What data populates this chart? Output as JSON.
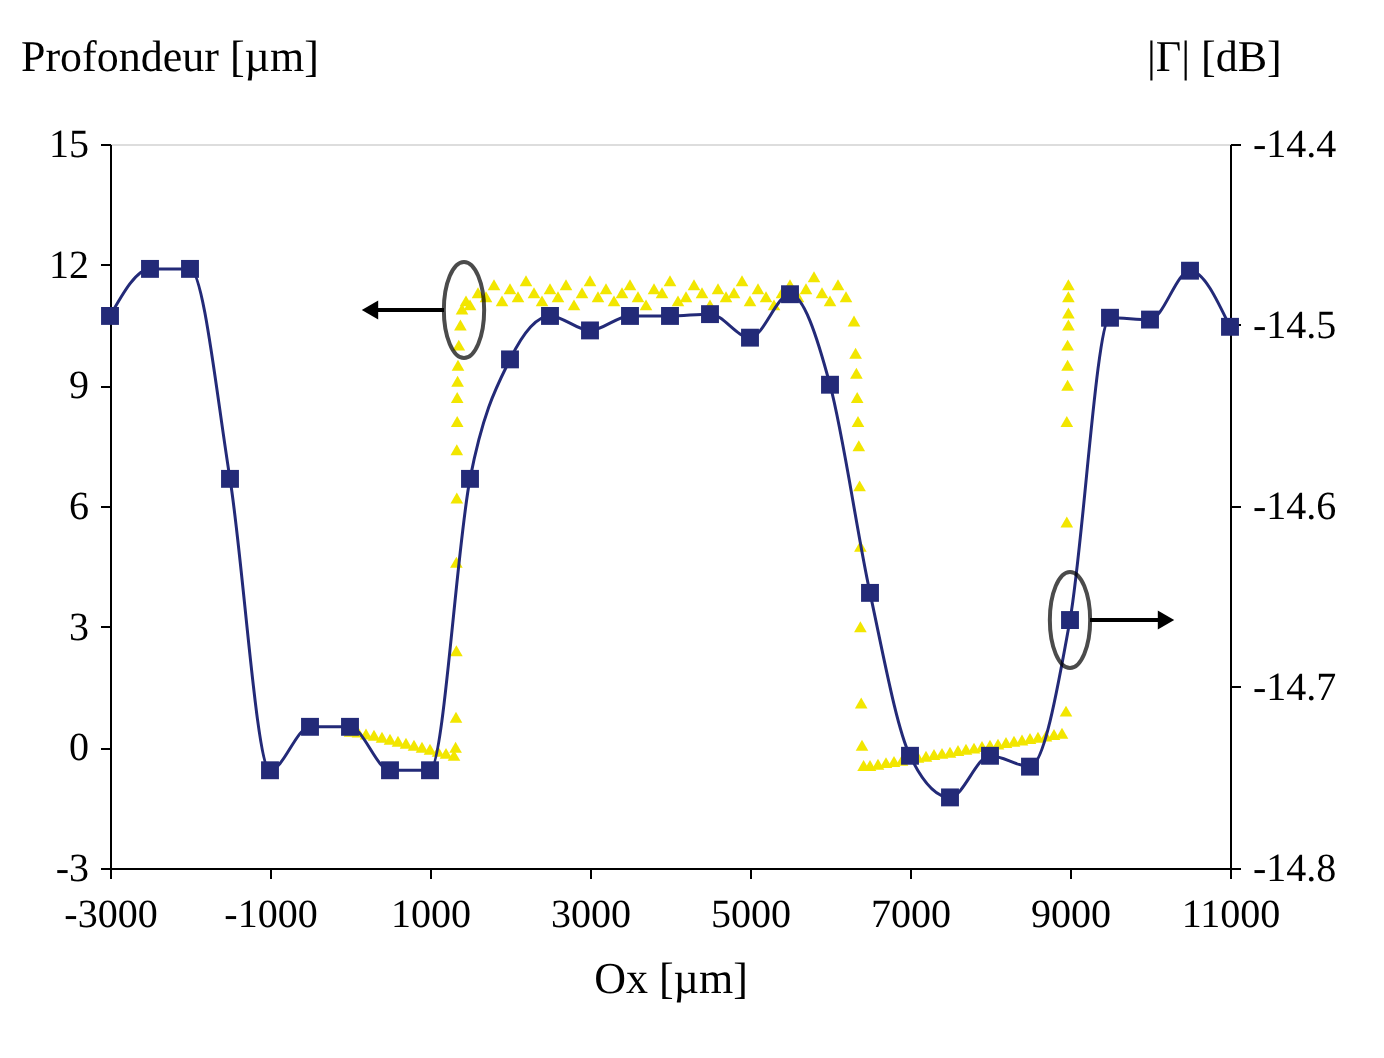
{
  "chart_data": {
    "type": "line",
    "xlabel": "Ox [µm]",
    "ylabel": "Profondeur [µm]",
    "y2label": "|Γ| [dB]",
    "xlim": [
      -3000,
      11000
    ],
    "xticks": [
      -3000,
      -1000,
      1000,
      3000,
      5000,
      7000,
      9000,
      11000
    ],
    "ylim": [
      -3,
      15
    ],
    "yticks": [
      -3,
      0,
      3,
      6,
      9,
      12,
      15
    ],
    "y2lim": [
      -14.8,
      -14.4
    ],
    "y2ticks": [
      -14.8,
      -14.7,
      -14.6,
      -14.5,
      -14.4
    ],
    "grid": false,
    "series": [
      {
        "type": "scatter",
        "marker": "triangle",
        "color": "#f2e600",
        "x": [
          0,
          100,
          200,
          300,
          400,
          500,
          600,
          700,
          800,
          900,
          1000,
          1100,
          1200,
          1300,
          1320,
          1325,
          1330,
          1330,
          1335,
          1335,
          1340,
          1340,
          1345,
          1350,
          1360,
          1380,
          1400,
          1450,
          1500,
          1600,
          1700,
          1800,
          1900,
          2000,
          2100,
          2200,
          2300,
          2400,
          2500,
          2600,
          2700,
          2800,
          2900,
          3000,
          3100,
          3200,
          3300,
          3400,
          3500,
          3600,
          3700,
          3800,
          3900,
          4000,
          4100,
          4200,
          4300,
          4400,
          4500,
          4600,
          4700,
          4800,
          4900,
          5000,
          5100,
          5200,
          5300,
          5400,
          5500,
          5600,
          5700,
          5800,
          5900,
          6000,
          6100,
          6200,
          6300,
          6320,
          6330,
          6340,
          6350,
          6360,
          6370,
          6380,
          6380,
          6390,
          6400,
          6420,
          6500,
          6600,
          6700,
          6800,
          6900,
          7000,
          7100,
          7200,
          7300,
          7400,
          7500,
          7600,
          7700,
          7800,
          7900,
          8000,
          8100,
          8200,
          8300,
          8400,
          8500,
          8600,
          8700,
          8800,
          8900,
          8950,
          8960,
          8960,
          8970,
          8970,
          8970,
          8980,
          8980,
          8980,
          8980
        ],
        "values": [
          0.4,
          0.38,
          0.33,
          0.3,
          0.25,
          0.2,
          0.15,
          0.1,
          0.05,
          0.0,
          -0.05,
          -0.1,
          -0.15,
          -0.2,
          0.0,
          0.75,
          2.4,
          4.6,
          6.2,
          7.4,
          8.1,
          8.7,
          9.1,
          9.5,
          10.0,
          10.5,
          10.9,
          11.1,
          11.0,
          11.3,
          11.2,
          11.5,
          11.1,
          11.4,
          11.2,
          11.6,
          11.3,
          11.1,
          11.4,
          11.2,
          11.5,
          11.0,
          11.3,
          11.6,
          11.2,
          11.4,
          11.1,
          11.3,
          11.5,
          11.2,
          11.0,
          11.4,
          11.3,
          11.6,
          11.1,
          11.2,
          11.5,
          11.3,
          11.0,
          11.4,
          11.2,
          11.3,
          11.6,
          11.1,
          11.4,
          11.2,
          11.0,
          11.3,
          11.5,
          11.2,
          11.4,
          11.7,
          11.3,
          11.1,
          11.5,
          11.2,
          10.6,
          9.8,
          9.3,
          8.7,
          8.1,
          7.5,
          6.5,
          5.0,
          3.0,
          1.1,
          0.05,
          -0.45,
          -0.45,
          -0.42,
          -0.38,
          -0.35,
          -0.32,
          null,
          -0.25,
          -0.22,
          -0.18,
          -0.15,
          -0.12,
          -0.08,
          -0.05,
          -0.02,
          0.02,
          0.05,
          0.08,
          0.12,
          0.15,
          0.18,
          0.22,
          0.25,
          0.28,
          0.32,
          0.35,
          0.9,
          5.6,
          8.1,
          9.0,
          9.5,
          10.0,
          10.5,
          10.8,
          11.2,
          11.5
        ]
      },
      {
        "axis": "y2",
        "marker": "square",
        "line_style": "solid",
        "color": "#232a78",
        "x": [
          -3000,
          -2500,
          -2000,
          -1500,
          -1000,
          -500,
          0,
          500,
          1000,
          1500,
          2000,
          2500,
          3000,
          3500,
          4000,
          4500,
          5000,
          5500,
          6000,
          6500,
          7000,
          7500,
          8000,
          8500,
          9000,
          9500,
          10000,
          10500,
          11000
        ],
        "values": [
          -14.495,
          -14.469,
          -14.469,
          -14.585,
          -14.746,
          -14.722,
          -14.722,
          -14.746,
          -14.746,
          -14.585,
          -14.519,
          -14.495,
          -14.503,
          -14.495,
          -14.495,
          -14.494,
          -14.507,
          -14.483,
          -14.533,
          -14.648,
          -14.738,
          -14.761,
          -14.738,
          -14.744,
          -14.663,
          -14.496,
          -14.497,
          -14.47,
          -14.501
        ]
      }
    ]
  }
}
